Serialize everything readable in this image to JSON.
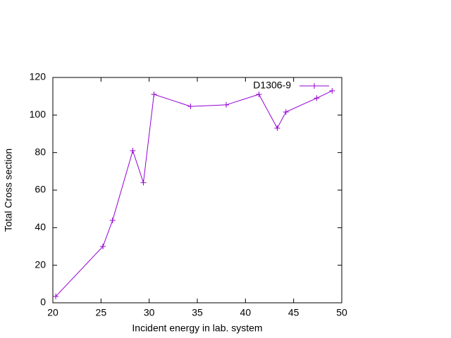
{
  "chart_data": {
    "type": "line",
    "xlabel": "Incident energy in lab. system",
    "ylabel": "Total Cross section",
    "x": [
      20.3,
      25.2,
      26.2,
      28.3,
      29.4,
      30.5,
      34.3,
      38.0,
      41.4,
      43.3,
      44.2,
      47.4,
      49.0
    ],
    "series": [
      {
        "name": "D1306-9",
        "color": "#9400d3",
        "values": [
          3.4,
          30,
          43.9,
          81,
          64,
          111,
          104.6,
          105.4,
          111,
          93,
          101.6,
          109,
          112.9
        ]
      }
    ],
    "xlim": [
      20,
      50
    ],
    "xticks": [
      20,
      25,
      30,
      35,
      40,
      45,
      50
    ],
    "ylim": [
      0,
      120
    ],
    "yticks": [
      0,
      20,
      40,
      60,
      80,
      100,
      120
    ],
    "legend": "top-right",
    "grid": false
  }
}
